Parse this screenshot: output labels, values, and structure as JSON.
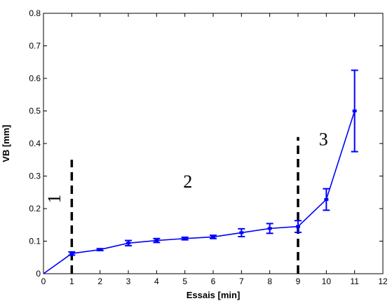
{
  "chart_data": {
    "type": "line",
    "title": "",
    "xlabel": "Essais [min]",
    "ylabel": "VB [mm]",
    "xlim": [
      0,
      12
    ],
    "ylim": [
      0,
      0.8
    ],
    "x_ticks": [
      "0",
      "1",
      "2",
      "3",
      "4",
      "5",
      "6",
      "7",
      "8",
      "9",
      "10",
      "11",
      "12"
    ],
    "y_ticks": [
      "0",
      "0.1",
      "0.2",
      "0.3",
      "0.4",
      "0.5",
      "0.6",
      "0.7",
      "0.8"
    ],
    "grid": false,
    "legend": "none",
    "series": [
      {
        "color": "#0000ff",
        "x": [
          0,
          1,
          2,
          3,
          4,
          5,
          6,
          7,
          8,
          9,
          10,
          11
        ],
        "y": [
          0,
          0.062,
          0.074,
          0.094,
          0.102,
          0.108,
          0.113,
          0.126,
          0.139,
          0.145,
          0.228,
          0.5
        ],
        "error": [
          0,
          0.005,
          0.003,
          0.008,
          0.006,
          0.004,
          0.005,
          0.012,
          0.015,
          0.018,
          0.033,
          0.125
        ]
      }
    ],
    "dividers": [
      {
        "x": 1,
        "y_top": 0.35,
        "color": "#000000"
      },
      {
        "x": 9,
        "y_top": 0.42,
        "color": "#000000"
      }
    ],
    "region_labels": [
      {
        "text": "1",
        "x": 0.6,
        "y": 0.23,
        "rotated": true
      },
      {
        "text": "2",
        "x": 5.1,
        "y": 0.265,
        "rotated": false
      },
      {
        "text": "3",
        "x": 9.9,
        "y": 0.395,
        "rotated": false
      }
    ]
  }
}
